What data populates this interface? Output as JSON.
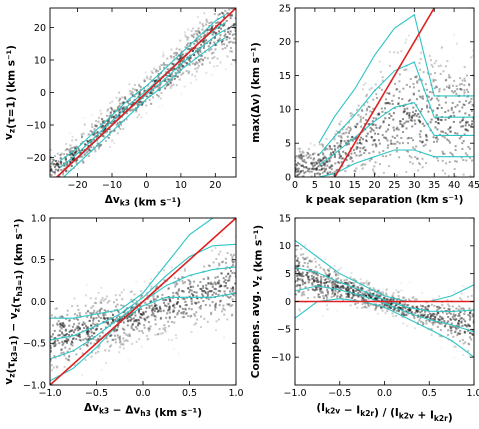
{
  "colors": {
    "density": "#222222",
    "contour": "#2ec4c4",
    "reference_line": "#e02020"
  },
  "chart_data": [
    {
      "type": "scatter",
      "panel": "top-left",
      "xlabel": "Δv_k3 (km s⁻¹)",
      "ylabel": "v_z(τ=1) (km s⁻¹)",
      "xlim": [
        -28,
        26
      ],
      "ylim": [
        -26,
        26
      ],
      "xticks": [
        "−20",
        "−10",
        "0",
        "10",
        "20"
      ],
      "xtick_values": [
        -20,
        -10,
        0,
        10,
        20
      ],
      "yticks": [
        "−20",
        "−10",
        "0",
        "10",
        "20"
      ],
      "ytick_values": [
        -20,
        -10,
        0,
        10,
        20
      ],
      "reference_line": {
        "x": [
          -28,
          26
        ],
        "y": [
          -28,
          26
        ]
      },
      "density_trend": {
        "x": [
          -25,
          -15,
          -5,
          0,
          5,
          15,
          22
        ],
        "y": [
          -23,
          -14,
          -4,
          0,
          5,
          14,
          20
        ],
        "spread": [
          2.5,
          3,
          3,
          2.5,
          3,
          4,
          5
        ]
      },
      "contour_envelope": {
        "x": [
          -25,
          -20,
          -15,
          -10,
          -5,
          0,
          5,
          10,
          15,
          20,
          23
        ],
        "lower": [
          -27,
          -22,
          -17,
          -12,
          -7,
          -2,
          2,
          7,
          11,
          15,
          17
        ],
        "upper": [
          -21,
          -17,
          -12,
          -7,
          -2,
          2,
          7,
          12,
          17,
          22,
          24
        ]
      }
    },
    {
      "type": "scatter",
      "panel": "top-right",
      "xlabel": "k peak separation (km s⁻¹)",
      "ylabel": "max(Δv) (km s⁻¹)",
      "xlim": [
        0,
        45
      ],
      "ylim": [
        0,
        25
      ],
      "xticks": [
        "0",
        "5",
        "10",
        "15",
        "20",
        "25",
        "30",
        "35",
        "40",
        "45"
      ],
      "xtick_values": [
        0,
        5,
        10,
        15,
        20,
        25,
        30,
        35,
        40,
        45
      ],
      "yticks": [
        "0",
        "5",
        "10",
        "15",
        "20",
        "25"
      ],
      "ytick_values": [
        0,
        5,
        10,
        15,
        20,
        25
      ],
      "reference_line": {
        "x": [
          10,
          35
        ],
        "y": [
          0,
          25
        ]
      },
      "density_trend": {
        "x": [
          5,
          10,
          15,
          20,
          25,
          30,
          40,
          45
        ],
        "y": [
          1.5,
          3,
          5,
          7,
          9,
          9,
          8,
          8
        ],
        "spread": [
          1.5,
          2,
          3,
          4,
          5,
          5,
          5,
          5
        ]
      },
      "contour_envelope": {
        "x": [
          6,
          10,
          15,
          20,
          25,
          30,
          35,
          40,
          45
        ],
        "lower": [
          0,
          0.5,
          2,
          3,
          4,
          4,
          3,
          3,
          3
        ],
        "upper": [
          5,
          9,
          13,
          18,
          22,
          24,
          12,
          12,
          12
        ]
      }
    },
    {
      "type": "scatter",
      "panel": "bottom-left",
      "xlabel": "Δv_k3 − Δv_h3 (km s⁻¹)",
      "ylabel": "v_z(τ_k3=1) − v_z(τ_h3=1) (km s⁻¹)",
      "xlim": [
        -1.0,
        1.0
      ],
      "ylim": [
        -1.0,
        1.0
      ],
      "xticks": [
        "−1.0",
        "−0.5",
        "0.0",
        "0.5",
        "1.0"
      ],
      "xtick_values": [
        -1.0,
        -0.5,
        0.0,
        0.5,
        1.0
      ],
      "yticks": [
        "−1.0",
        "−0.5",
        "0.0",
        "0.5",
        "1.0"
      ],
      "ytick_values": [
        -1.0,
        -0.5,
        0.0,
        0.5,
        1.0
      ],
      "reference_line": {
        "x": [
          -1.0,
          1.0
        ],
        "y": [
          -1.0,
          1.0
        ]
      },
      "density_trend": {
        "x": [
          -1.0,
          -0.5,
          0.0,
          0.5,
          1.0
        ],
        "y": [
          -0.45,
          -0.32,
          -0.15,
          0.05,
          0.25
        ],
        "spread": [
          0.2,
          0.2,
          0.15,
          0.2,
          0.25
        ]
      },
      "contour_envelope": {
        "x": [
          -1.0,
          -0.75,
          -0.5,
          -0.25,
          0.0,
          0.25,
          0.5,
          0.75,
          1.0
        ],
        "lower": [
          -0.95,
          -0.8,
          -0.55,
          -0.25,
          -0.05,
          0.05,
          0.05,
          0.05,
          0.1
        ],
        "upper": [
          -0.2,
          -0.2,
          -0.15,
          -0.1,
          0.1,
          0.45,
          0.8,
          1.0,
          1.0
        ]
      }
    },
    {
      "type": "scatter",
      "panel": "bottom-right",
      "xlabel": "(I_k2v − I_k2r) / (I_k2v + I_k2r)",
      "ylabel": "Compens. avg. v_z (km s⁻¹)",
      "xlim": [
        -1.0,
        1.0
      ],
      "ylim": [
        -15,
        15
      ],
      "xticks": [
        "−1.0",
        "−0.5",
        "0.0",
        "0.5",
        "1.0"
      ],
      "xtick_values": [
        -1.0,
        -0.5,
        0.0,
        0.5,
        1.0
      ],
      "yticks": [
        "−10",
        "−5",
        "0",
        "5",
        "10",
        "15"
      ],
      "ytick_values": [
        -10,
        -5,
        0,
        5,
        10,
        15
      ],
      "reference_line": {
        "x": [
          -1.0,
          1.0
        ],
        "y": [
          0,
          0
        ]
      },
      "density_trend": {
        "x": [
          -1.0,
          -0.75,
          -0.5,
          0.0,
          0.5,
          0.75,
          1.0
        ],
        "y": [
          5,
          3.5,
          2.5,
          0,
          -2.5,
          -3.5,
          -4
        ],
        "spread": [
          3,
          2,
          1.5,
          1,
          1.5,
          2,
          3
        ]
      },
      "contour_envelope": {
        "x": [
          -1.0,
          -0.75,
          -0.5,
          -0.25,
          0.0,
          0.25,
          0.5,
          0.75,
          1.0
        ],
        "lower": [
          -3,
          0,
          0.5,
          0,
          -1,
          -3,
          -5,
          -7,
          -10
        ],
        "upper": [
          11,
          8,
          5,
          3,
          1,
          0,
          0,
          1,
          3
        ]
      }
    }
  ]
}
